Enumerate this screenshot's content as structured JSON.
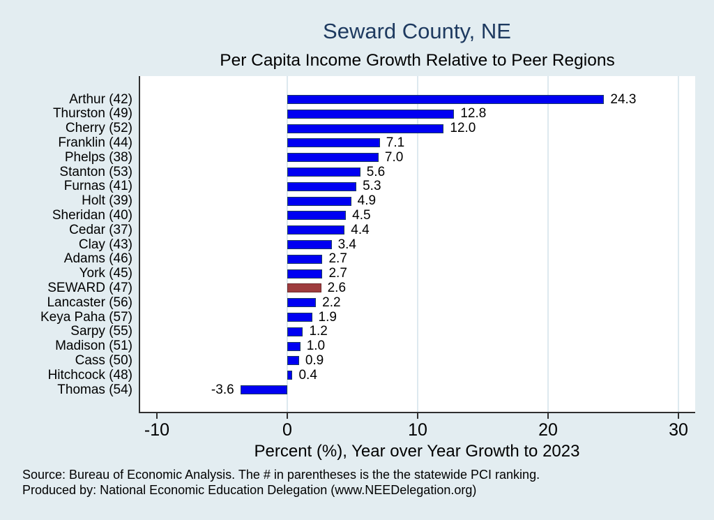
{
  "page": {
    "background_color": "#e3edf1"
  },
  "header": {
    "title": "Seward County, NE",
    "subtitle": "Per Capita Income Growth Relative to Peer Regions",
    "title_color": "#1e3a60"
  },
  "chart_data": {
    "type": "bar",
    "orientation": "horizontal",
    "title": "Seward County, NE",
    "subtitle": "Per Capita Income Growth Relative to Peer Regions",
    "xlabel": "Percent (%), Year over Year Growth to 2023",
    "ylabel": "",
    "categories": [
      "Arthur (42)",
      "Thurston (49)",
      "Cherry (52)",
      "Franklin (44)",
      "Phelps (38)",
      "Stanton (53)",
      "Furnas (41)",
      "Holt (39)",
      "Sheridan (40)",
      "Cedar (37)",
      "Clay (43)",
      "Adams (46)",
      "York (45)",
      "SEWARD (47)",
      "Lancaster (56)",
      "Keya Paha (57)",
      "Sarpy (55)",
      "Madison (51)",
      "Cass (50)",
      "Hitchcock (48)",
      "Thomas (54)"
    ],
    "values": [
      24.3,
      12.8,
      12.0,
      7.1,
      7.0,
      5.6,
      5.3,
      4.9,
      4.5,
      4.4,
      3.4,
      2.7,
      2.7,
      2.6,
      2.2,
      1.9,
      1.2,
      1.0,
      0.9,
      0.4,
      -3.6
    ],
    "value_labels": [
      "24.3",
      "12.8",
      "12.0",
      "7.1",
      "7.0",
      "5.6",
      "5.3",
      "4.9",
      "4.5",
      "4.4",
      "3.4",
      "2.7",
      "2.7",
      "2.6",
      "2.2",
      "1.9",
      "1.2",
      "1.0",
      "0.9",
      "0.4",
      "-3.6"
    ],
    "highlight_index": 13,
    "highlight_category": "SEWARD (47)",
    "bar_color": "#0000f2",
    "bar_border_color": "#1c3c5e",
    "highlight_color": "#9e3c3e",
    "highlight_border_color": "#6e2a2c",
    "xticks": [
      -10,
      0,
      10,
      20,
      30
    ],
    "gridline_ticks": [
      0,
      10,
      20,
      30
    ],
    "xlim": [
      -11.4,
      31.3
    ],
    "grid": "vertical-light",
    "legend": "none"
  },
  "footer": {
    "source_line": "Source: Bureau of Economic Analysis. The # in parentheses is the the statewide PCI ranking.",
    "produced_line": "Produced by: National Economic Education Delegation (www.NEEDelegation.org)"
  }
}
